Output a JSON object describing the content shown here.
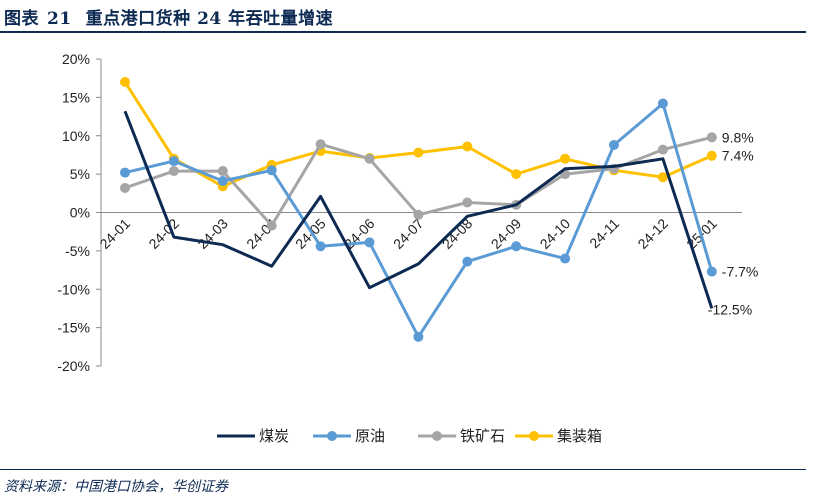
{
  "header": {
    "figure_label": "图表",
    "figure_number": "21",
    "title": "重点港口货种 24 年吞吐量增速"
  },
  "footer": {
    "source": "资料来源：中国港口协会，华创证券"
  },
  "chart_data": {
    "type": "line",
    "title": "重点港口货种 24 年吞吐量增速",
    "xlabel": "",
    "ylabel": "",
    "categories": [
      "24-01",
      "24-02",
      "24-03",
      "24-04",
      "24-05",
      "24-06",
      "24-07",
      "24-08",
      "24-09",
      "24-10",
      "24-11",
      "24-12",
      "25-01"
    ],
    "y_ticks": [
      "20%",
      "15%",
      "10%",
      "5%",
      "0%",
      "-5%",
      "-10%",
      "-15%",
      "-20%"
    ],
    "ylim": [
      -20,
      20
    ],
    "y_unit": "%",
    "grid": false,
    "legend_position": "bottom",
    "series": [
      {
        "name": "煤炭",
        "color": "#0d2a52",
        "values": [
          13.2,
          -3.2,
          -4.2,
          -7.0,
          2.1,
          -9.8,
          -6.7,
          -0.5,
          1.0,
          5.7,
          6.0,
          7.0,
          -12.5
        ],
        "end_label": "-12.5%"
      },
      {
        "name": "原油",
        "color": "#5b9bd5",
        "values": [
          5.2,
          6.7,
          4.1,
          5.5,
          -4.4,
          -3.9,
          -16.2,
          -6.4,
          -4.4,
          -6.0,
          8.8,
          14.2,
          -7.7
        ],
        "end_label": "-7.7%"
      },
      {
        "name": "铁矿石",
        "color": "#a5a5a5",
        "values": [
          3.2,
          5.4,
          5.4,
          -1.7,
          8.9,
          7.0,
          -0.3,
          1.3,
          1.0,
          5.0,
          5.7,
          8.2,
          9.8
        ],
        "end_label": "9.8%"
      },
      {
        "name": "集装箱",
        "color": "#ffc000",
        "values": [
          17.0,
          7.0,
          3.4,
          6.2,
          8.0,
          7.1,
          7.8,
          8.6,
          5.0,
          7.0,
          5.5,
          4.6,
          7.4
        ],
        "end_label": "7.4%"
      }
    ]
  }
}
